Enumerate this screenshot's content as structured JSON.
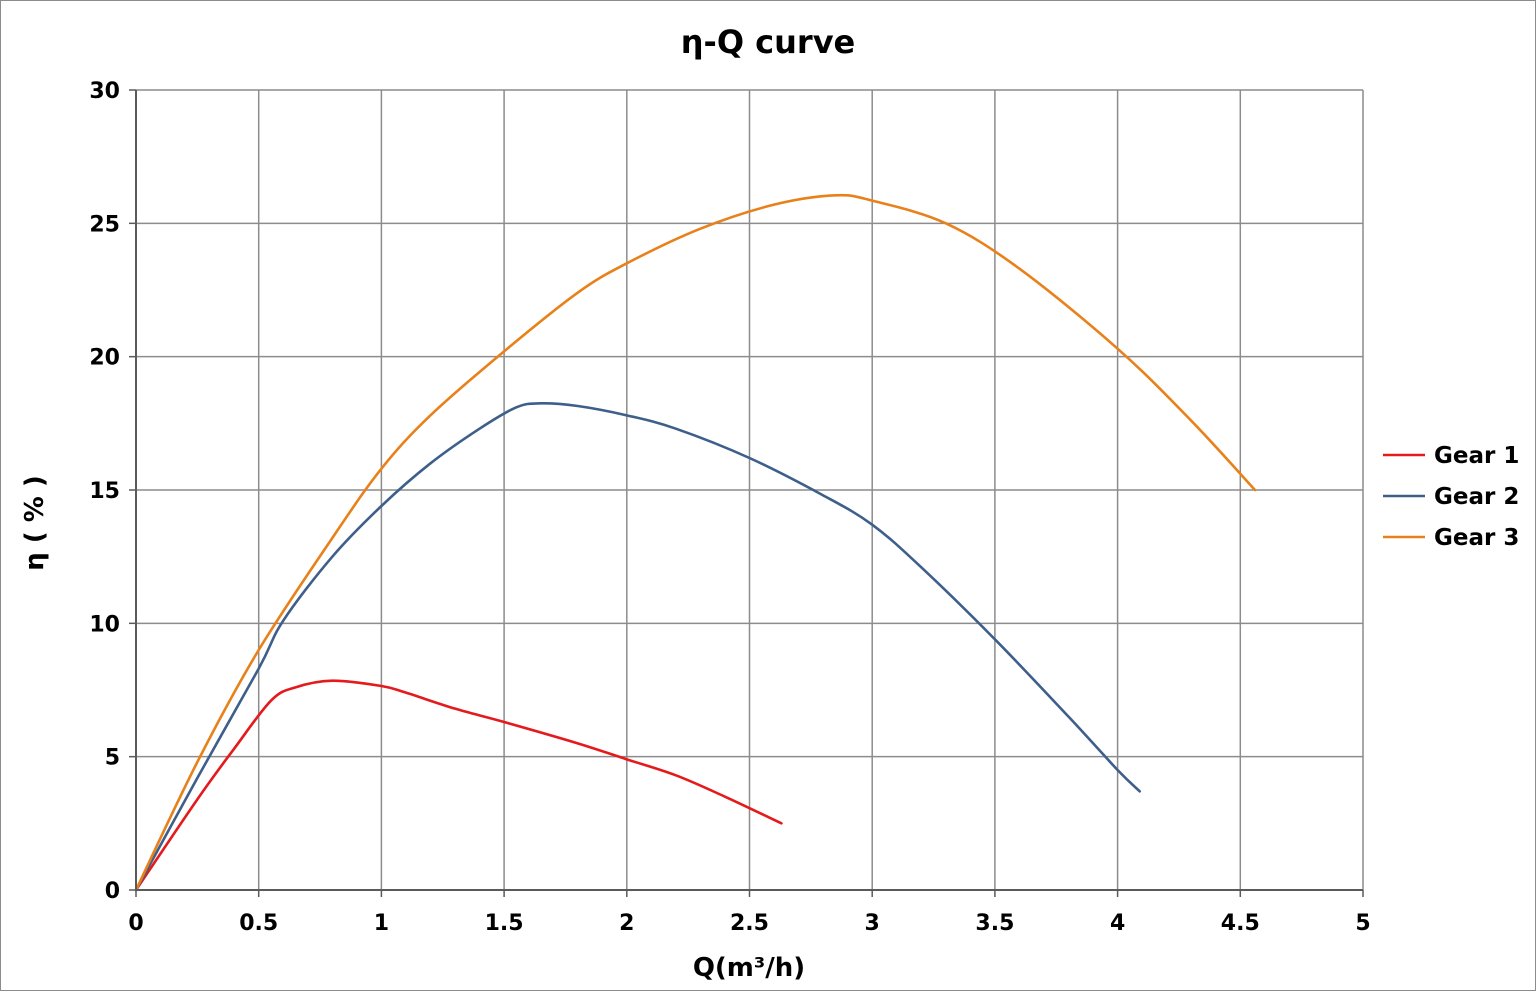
{
  "chart_data": {
    "type": "line",
    "title": "η-Q  curve",
    "xlabel": "Q(m³/h)",
    "ylabel": "η ( % )",
    "xlim": [
      0,
      5
    ],
    "ylim": [
      0,
      30
    ],
    "xticks": [
      "0",
      "0.5",
      "1",
      "1.5",
      "2",
      "2.5",
      "3",
      "3.5",
      "4",
      "4.5",
      "5"
    ],
    "yticks": [
      "0",
      "5",
      "10",
      "15",
      "20",
      "25",
      "30"
    ],
    "grid": true,
    "legend_position": "right",
    "series": [
      {
        "name": "Gear 1",
        "color": "#e41a1c",
        "x": [
          0,
          0.25,
          0.4,
          0.55,
          0.65,
          0.8,
          1.0,
          1.1,
          1.3,
          1.5,
          1.8,
          2.0,
          2.2,
          2.4,
          2.63
        ],
        "y": [
          0,
          3.4,
          5.3,
          7.1,
          7.6,
          7.85,
          7.65,
          7.4,
          6.8,
          6.3,
          5.5,
          4.9,
          4.3,
          3.5,
          2.5
        ]
      },
      {
        "name": "Gear 2",
        "color": "#3d5f8a",
        "x": [
          0,
          0.25,
          0.5,
          0.6,
          0.8,
          1.0,
          1.2,
          1.4,
          1.55,
          1.65,
          1.8,
          2.0,
          2.2,
          2.5,
          2.8,
          3.0,
          3.2,
          3.5,
          3.8,
          4.0,
          4.09
        ],
        "y": [
          0,
          4.2,
          8.3,
          10.1,
          12.5,
          14.4,
          16.0,
          17.3,
          18.1,
          18.25,
          18.15,
          17.8,
          17.3,
          16.2,
          14.8,
          13.7,
          12.1,
          9.4,
          6.5,
          4.5,
          3.7
        ]
      },
      {
        "name": "Gear 3",
        "color": "#e8811a",
        "x": [
          0,
          0.25,
          0.5,
          0.8,
          1.0,
          1.2,
          1.5,
          1.8,
          2.0,
          2.3,
          2.6,
          2.85,
          3.0,
          3.3,
          3.6,
          4.0,
          4.3,
          4.56
        ],
        "y": [
          0,
          4.8,
          9.0,
          13.2,
          15.8,
          17.8,
          20.2,
          22.4,
          23.5,
          24.8,
          25.7,
          26.05,
          25.85,
          25.0,
          23.3,
          20.3,
          17.6,
          15.0
        ]
      }
    ]
  }
}
